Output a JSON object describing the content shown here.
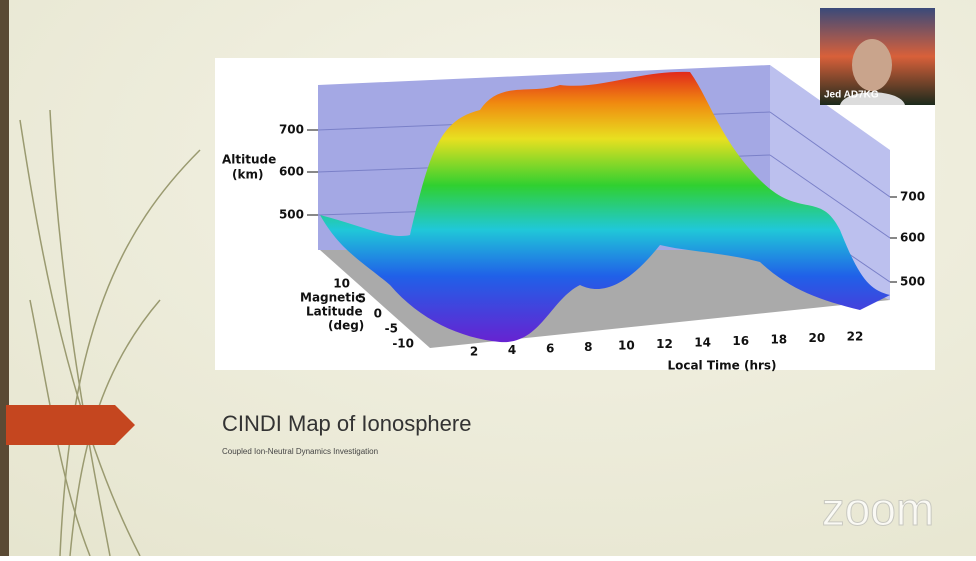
{
  "slide": {
    "title": "CINDI Map of Ionosphere",
    "subtitle": "Coupled Ion-Neutral Dynamics Investigation"
  },
  "figure": {
    "altitude_label": "Altitude",
    "altitude_unit": "(km)",
    "left_ticks": [
      "700",
      "600",
      "500"
    ],
    "right_ticks": [
      "700",
      "600",
      "500"
    ],
    "latitude_label": [
      "Magnetic",
      "Latitude",
      "(deg)"
    ],
    "latitude_ticks": [
      "10",
      "5",
      "0",
      "-5",
      "-10"
    ],
    "time_ticks": [
      "2",
      "4",
      "6",
      "8",
      "10",
      "12",
      "14",
      "16",
      "18",
      "20",
      "22"
    ],
    "time_label": "Local Time (hrs)"
  },
  "video": {
    "participant": "Jed AD7KG"
  },
  "watermark": "zoom"
}
